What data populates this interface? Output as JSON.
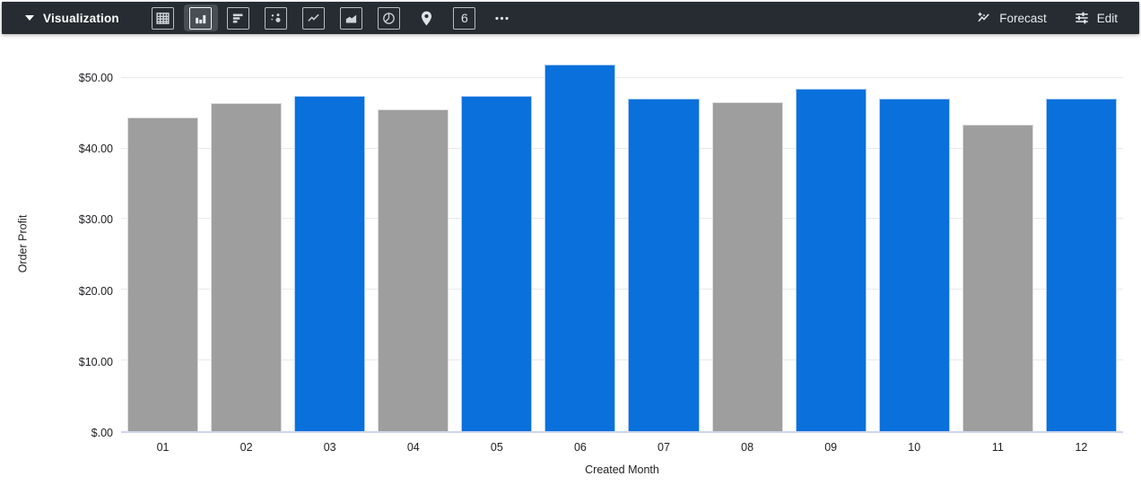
{
  "toolbar": {
    "title": "Visualization",
    "forecast_label": "Forecast",
    "edit_label": "Edit",
    "single_value_glyph": "6",
    "viz_icons": [
      "table",
      "column-chart",
      "bar-chart",
      "scatter-plot",
      "line-chart",
      "area-chart",
      "pie-chart",
      "map-pin",
      "single-value",
      "more-options"
    ],
    "selected_viz": "column-chart"
  },
  "colors": {
    "bar_blue": "#0A70DC",
    "bar_gray": "#9E9E9E",
    "toolbar_bg": "#262c31",
    "gridline": "#e9e9e9",
    "axis_line": "#ccd5ea"
  },
  "chart_data": {
    "type": "bar",
    "title": "",
    "xlabel": "Created Month",
    "ylabel": "Order Profit",
    "categories": [
      "01",
      "02",
      "03",
      "04",
      "05",
      "06",
      "07",
      "08",
      "09",
      "10",
      "11",
      "12"
    ],
    "values": [
      44.4,
      46.4,
      47.5,
      45.5,
      47.5,
      51.9,
      47.1,
      46.5,
      48.4,
      47.1,
      43.4,
      47.1
    ],
    "point_colors": [
      "#9E9E9E",
      "#9E9E9E",
      "#0A70DC",
      "#9E9E9E",
      "#0A70DC",
      "#0A70DC",
      "#0A70DC",
      "#9E9E9E",
      "#0A70DC",
      "#0A70DC",
      "#9E9E9E",
      "#0A70DC"
    ],
    "ylim": [
      0,
      53.4
    ],
    "yticks": [
      {
        "value": 0,
        "label": "$.00"
      },
      {
        "value": 10,
        "label": "$10.00"
      },
      {
        "value": 20,
        "label": "$20.00"
      },
      {
        "value": 30,
        "label": "$30.00"
      },
      {
        "value": 40,
        "label": "$40.00"
      },
      {
        "value": 50,
        "label": "$50.00"
      }
    ],
    "grid": true,
    "legend": "none"
  }
}
